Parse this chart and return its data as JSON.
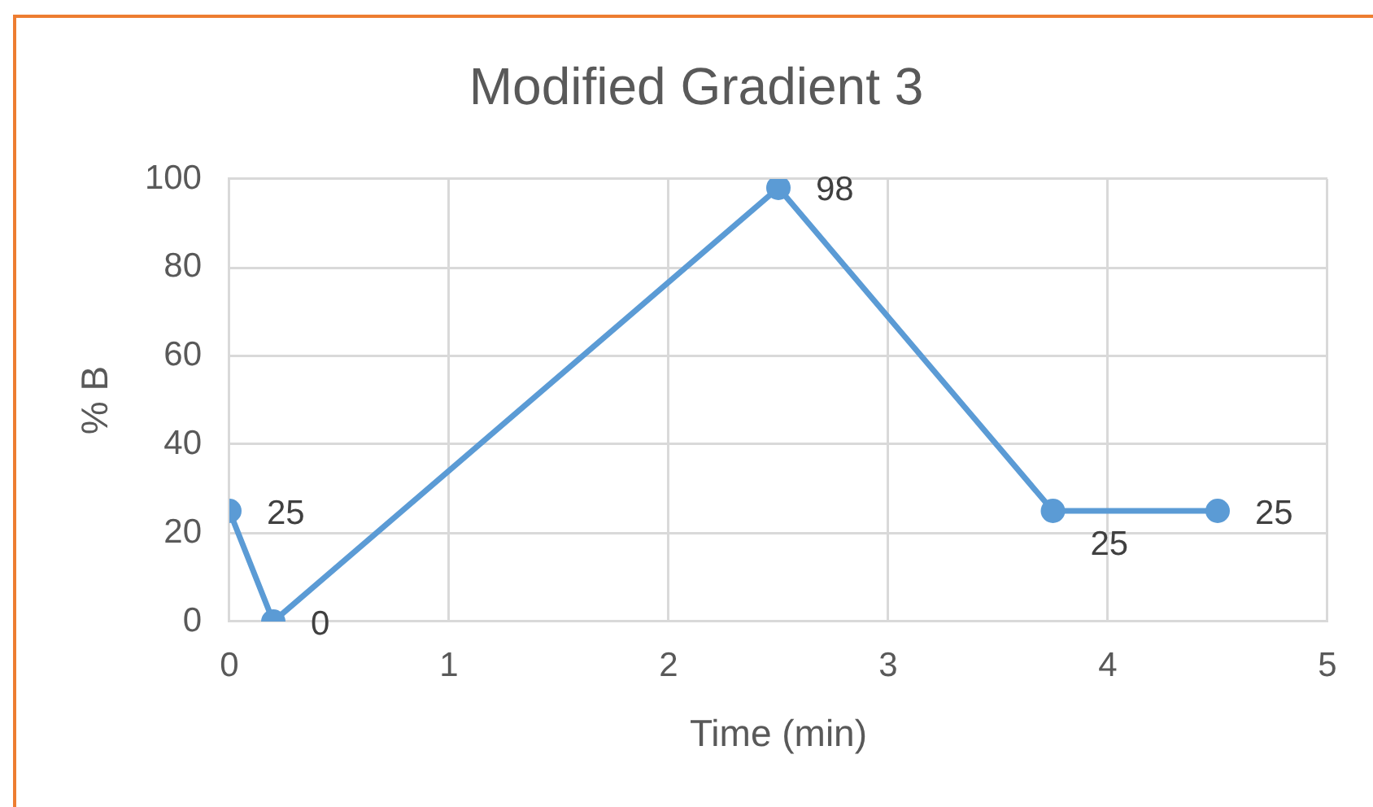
{
  "chart_data": {
    "type": "line",
    "title": "Modified Gradient 3",
    "xlabel": "Time (min)",
    "ylabel": "% B",
    "x": [
      0,
      0.2,
      2.5,
      3.75,
      4.5
    ],
    "series": [
      {
        "color": "#5b9bd5",
        "values": [
          25,
          0,
          98,
          25,
          25
        ]
      }
    ],
    "xlim": [
      0,
      5
    ],
    "xticks": [
      0,
      1,
      2,
      3,
      4,
      5
    ],
    "ylim": [
      0,
      100
    ],
    "yticks": [
      0,
      20,
      40,
      60,
      80,
      100
    ],
    "grid": true,
    "marker": "circle",
    "line_style": "solid",
    "data_labels": true
  }
}
